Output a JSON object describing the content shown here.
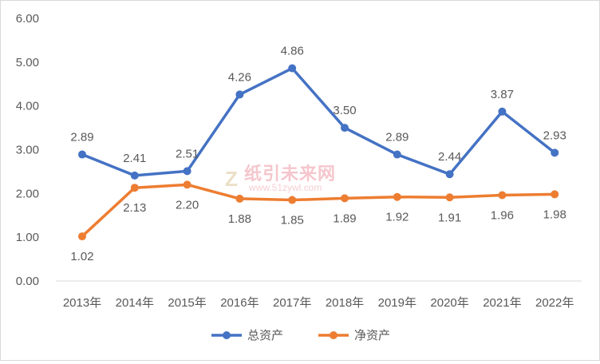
{
  "chart_data": {
    "type": "line",
    "categories": [
      "2013年",
      "2014年",
      "2015年",
      "2016年",
      "2017年",
      "2018年",
      "2019年",
      "2020年",
      "2021年",
      "2022年"
    ],
    "series": [
      {
        "name": "总资产",
        "color": "#4472C4",
        "values": [
          2.89,
          2.41,
          2.51,
          4.26,
          4.86,
          3.5,
          2.89,
          2.44,
          3.87,
          2.93
        ]
      },
      {
        "name": "净资产",
        "color": "#ED7D31",
        "values": [
          1.02,
          2.13,
          2.2,
          1.88,
          1.85,
          1.89,
          1.92,
          1.91,
          1.96,
          1.98
        ]
      }
    ],
    "ylim": [
      0,
      6
    ],
    "yticks": [
      "0.00",
      "1.00",
      "2.00",
      "3.00",
      "4.00",
      "5.00",
      "6.00"
    ],
    "grid": false,
    "legend": "bottom"
  },
  "watermark": {
    "name": "纸引未来网",
    "url": "www.51zywl.com"
  }
}
